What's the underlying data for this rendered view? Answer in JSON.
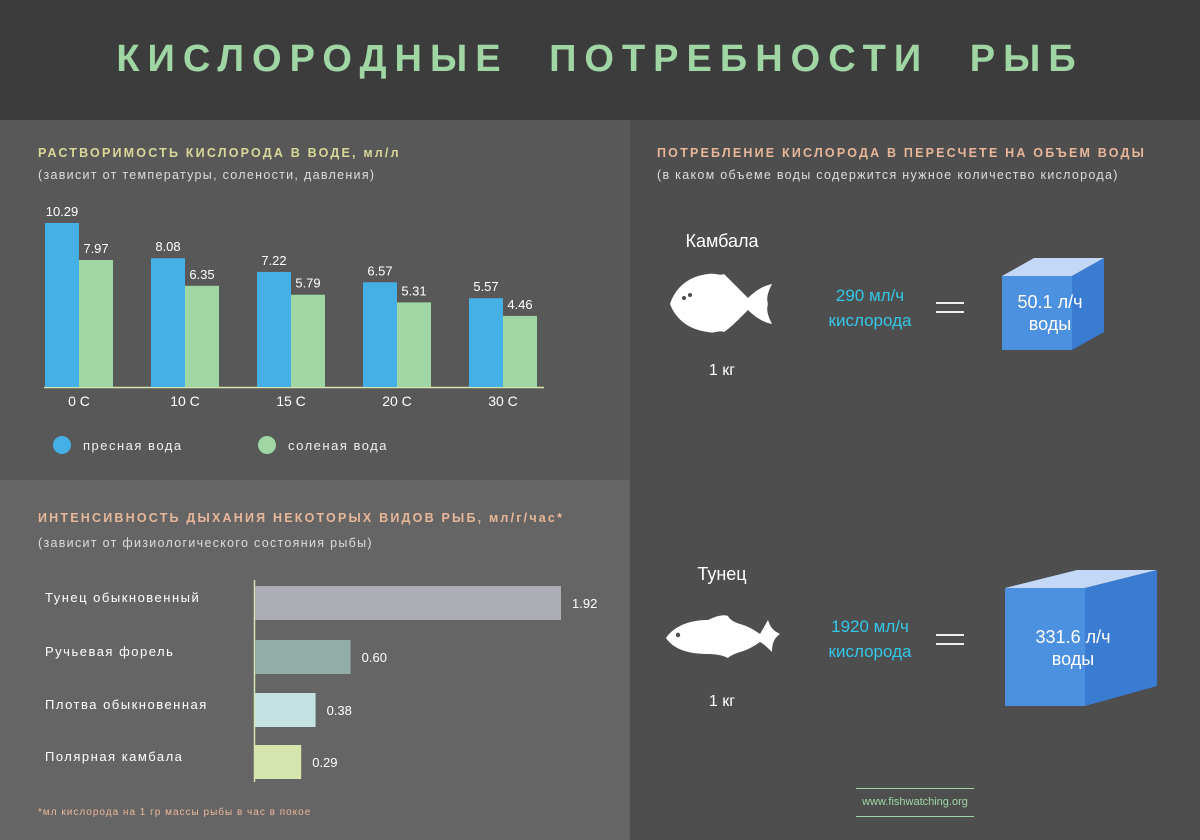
{
  "title": "КИСЛОРОДНЫЕ ПОТРЕБНОСТИ РЫБ",
  "solubility": {
    "title": "РАСТВОРИМОСТЬ КИСЛОРОДА В ВОДЕ, мл/л",
    "subtitle": "(зависит от температуры, солености, давления)",
    "legend": [
      {
        "label": "пресная вода",
        "color": "#45b0e5"
      },
      {
        "label": "соленая вода",
        "color": "#9fd6a4"
      }
    ]
  },
  "respiration": {
    "title": "ИНТЕНСИВНОСТЬ ДЫХАНИЯ НЕКОТОРЫХ ВИДОВ РЫБ, мл/г/час*",
    "subtitle": "(зависит от физиологического состояния рыбы)",
    "footnote": "*мл кислорода на 1 гр массы рыбы в час в покое"
  },
  "consumption": {
    "title": "ПОТРЕБЛЕНИЕ КИСЛОРОДА В ПЕРЕСЧЕТЕ НА ОБЪЕМ ВОДЫ",
    "subtitle": "(в каком объеме воды содержится нужное количество кислорода)",
    "fish": [
      {
        "name": "Камбала",
        "weight": "1 кг",
        "rate": "290 мл/ч",
        "rate_unit": "кислорода",
        "volume": "50.1 л/ч",
        "volume_unit": "воды"
      },
      {
        "name": "Тунец",
        "weight": "1 кг",
        "rate": "1920 мл/ч",
        "rate_unit": "кислорода",
        "volume": "331.6 л/ч",
        "volume_unit": "воды"
      }
    ]
  },
  "website": "www.fishwatching.org",
  "colors": {
    "fresh": "#45b0e5",
    "salt": "#9fd6a4",
    "title_green": "#9fd6a4",
    "section_title_yellow": "#d9d89a",
    "section_title_peach": "#e8b79a",
    "accent_cyan": "#33c8e8",
    "cube_front": "#4a8fe0"
  },
  "chart_data": [
    {
      "type": "bar",
      "categories": [
        "0 C",
        "10 C",
        "15 C",
        "20 C",
        "30 C"
      ],
      "series": [
        {
          "name": "пресная вода",
          "values": [
            10.29,
            8.08,
            7.22,
            6.57,
            5.57
          ]
        },
        {
          "name": "соленая вода",
          "values": [
            7.97,
            6.35,
            5.79,
            5.31,
            4.46
          ]
        }
      ],
      "ylim": [
        0,
        10.29
      ],
      "legend": "bottom"
    },
    {
      "type": "bar",
      "orientation": "horizontal",
      "categories": [
        "Тунец обыкновенный",
        "Ручьевая форель",
        "Плотва обыкновенная",
        "Полярная камбала"
      ],
      "values": [
        1.92,
        0.6,
        0.38,
        0.29
      ],
      "colors": [
        "#adadb6",
        "#92ada8",
        "#c3e2e1",
        "#d6e4ad"
      ],
      "xlim": [
        0,
        1.92
      ]
    }
  ]
}
